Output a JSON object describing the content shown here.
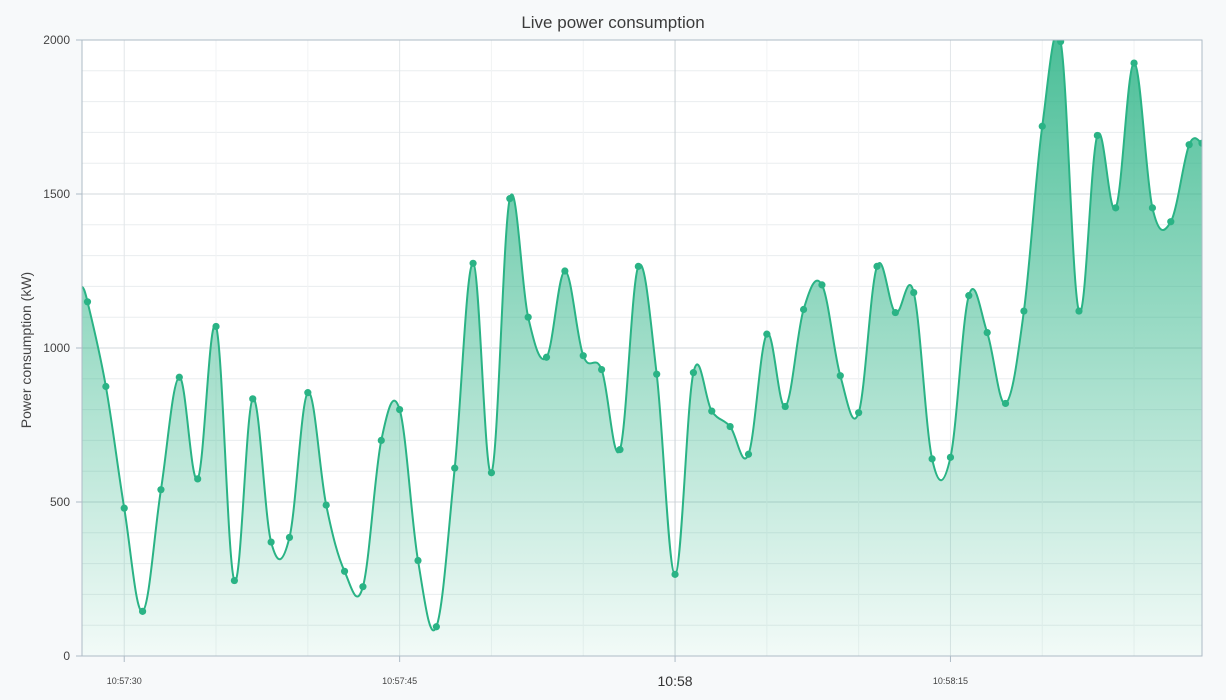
{
  "chart_data": {
    "type": "area",
    "title": "Live power consumption",
    "xlabel": "",
    "ylabel": "Power consumption (kW)",
    "ylim": [
      0,
      2000
    ],
    "yticks": [
      0,
      500,
      1000,
      1500,
      2000
    ],
    "x_range_seconds": [
      "10:57:27.7",
      "10:58:28.7"
    ],
    "xticks": [
      {
        "label": "10:57:30",
        "time": "10:57:30",
        "major": false
      },
      {
        "label": "10:57:45",
        "time": "10:57:45",
        "major": false
      },
      {
        "label": "10:58",
        "time": "10:58:00",
        "major": true
      },
      {
        "label": "10:58:15",
        "time": "10:58:15",
        "major": false
      }
    ],
    "grid": true,
    "legend": "none",
    "series": [
      {
        "color": "#2ab385",
        "x": [
          "10:57:28.0",
          "10:57:29.0",
          "10:57:30.0",
          "10:57:31.0",
          "10:57:32.0",
          "10:57:33.0",
          "10:57:34.0",
          "10:57:35.0",
          "10:57:36.0",
          "10:57:37.0",
          "10:57:38.0",
          "10:57:39.0",
          "10:57:40.0",
          "10:57:41.0",
          "10:57:42.0",
          "10:57:43.0",
          "10:57:44.0",
          "10:57:45.0",
          "10:57:46.0",
          "10:57:47.0",
          "10:57:48.0",
          "10:57:49.0",
          "10:57:50.0",
          "10:57:51.0",
          "10:57:52.0",
          "10:57:53.0",
          "10:57:54.0",
          "10:57:55.0",
          "10:57:56.0",
          "10:57:57.0",
          "10:57:58.0",
          "10:57:59.0",
          "10:58:00.0",
          "10:58:01.0",
          "10:58:02.0",
          "10:58:03.0",
          "10:58:04.0",
          "10:58:05.0",
          "10:58:06.0",
          "10:58:07.0",
          "10:58:08.0",
          "10:58:09.0",
          "10:58:10.0",
          "10:58:11.0",
          "10:58:12.0",
          "10:58:13.0",
          "10:58:14.0",
          "10:58:15.0",
          "10:58:16.0",
          "10:58:17.0",
          "10:58:18.0",
          "10:58:19.0",
          "10:58:20.0",
          "10:58:21.0",
          "10:58:22.0",
          "10:58:23.0",
          "10:58:24.0",
          "10:58:25.0",
          "10:58:26.0",
          "10:58:27.0",
          "10:58:28.0",
          "10:58:28.7"
        ],
        "values": [
          1150,
          875,
          480,
          145,
          540,
          905,
          575,
          1070,
          245,
          835,
          370,
          385,
          855,
          490,
          275,
          225,
          700,
          800,
          310,
          95,
          610,
          1275,
          595,
          1485,
          1100,
          970,
          1250,
          975,
          930,
          670,
          1265,
          915,
          265,
          920,
          795,
          745,
          655,
          1045,
          810,
          1125,
          1205,
          910,
          790,
          1265,
          1115,
          1180,
          640,
          645,
          1170,
          1050,
          820,
          1120,
          1720,
          1995,
          1120,
          1690,
          1455,
          1925,
          1455,
          1410,
          1660,
          1665
        ]
      }
    ]
  }
}
